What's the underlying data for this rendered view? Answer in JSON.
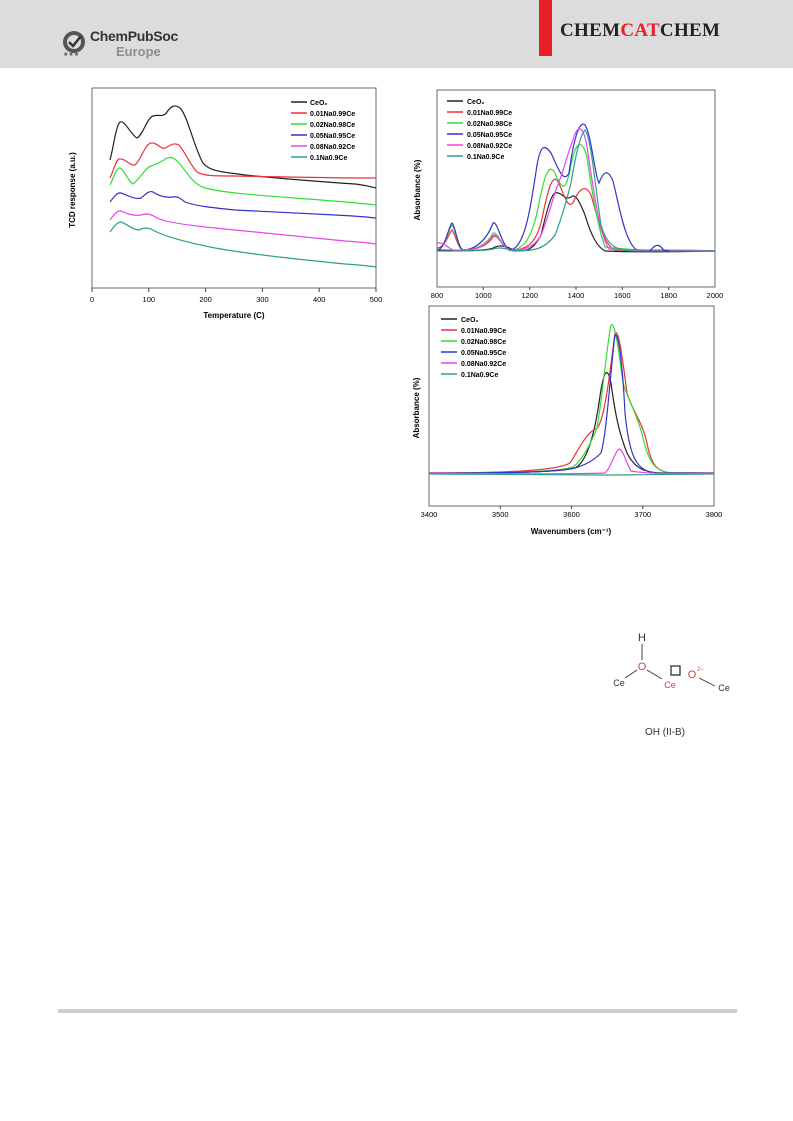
{
  "header": {
    "publisher_name": "ChemPubSoc",
    "publisher_sub": "Europe",
    "journal_part1": "CHEM",
    "journal_part2": "CAT",
    "journal_part3": "CHEM",
    "accent_color": "#e62026"
  },
  "legend_labels": [
    "CeO₂",
    "0.01Na0.99Ce",
    "0.02Na0.98Ce",
    "0.05Na0.95Ce",
    "0.08Na0.92Ce",
    "0.1Na0.9Ce"
  ],
  "series_colors": [
    "#222222",
    "#e8333a",
    "#33dd33",
    "#3333cc",
    "#e844e8",
    "#2e9e8e"
  ],
  "chart_data": [
    {
      "type": "line",
      "xlabel": "Temperature (C)",
      "ylabel": "TCD response (a.u.)",
      "xlim": [
        0,
        500
      ],
      "xticks": [
        0,
        100,
        200,
        300,
        400,
        500
      ],
      "legend": "top-right",
      "grid": false
    },
    {
      "type": "line",
      "xlabel": "",
      "ylabel": "Absorbance (%)",
      "xlim": [
        800,
        2000
      ],
      "xticks": [
        800,
        1000,
        1200,
        1400,
        1600,
        1800,
        2000
      ],
      "legend": "top-left",
      "grid": false
    },
    {
      "type": "line",
      "xlabel": "Wavenumbers (cm⁻¹)",
      "ylabel": "Absorbance (%)",
      "xlim": [
        3400,
        3800
      ],
      "xticks": [
        3400,
        3500,
        3600,
        3700,
        3800
      ],
      "legend": "top-left",
      "grid": false
    }
  ],
  "scheme": {
    "atom_h": "H",
    "atom_o": "O",
    "atom_ce_left": "Ce",
    "atom_ce_mid": "Ce",
    "atom_o2": "O",
    "charge": "2−",
    "atom_ce_right": "Ce",
    "caption": "OH (II-B)"
  }
}
